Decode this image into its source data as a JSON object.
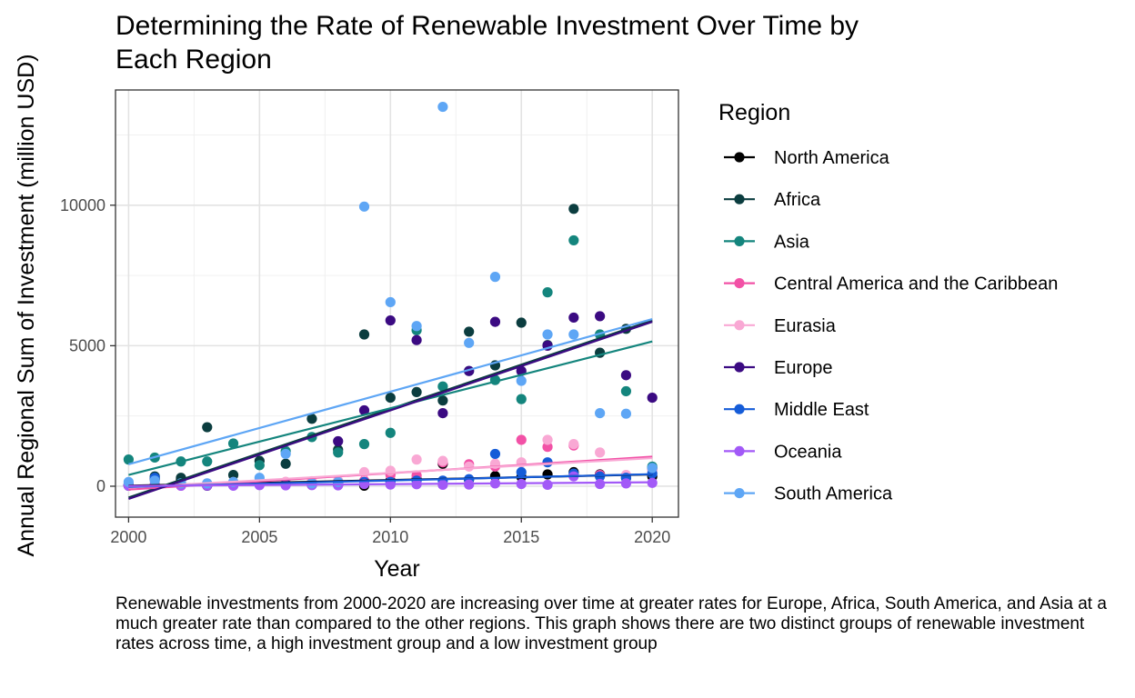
{
  "title": "Determining the Rate of Renewable Investment Over Time by\nEach Region",
  "caption": "Renewable investments from 2000-2020 are increasing over time at greater rates for Europe, Africa, South America, and Asia at a much greater rate than compared to the other regions. This graph shows there are two distinct groups of renewable investment rates across time, a high investment group and a low investment group",
  "chart_data": {
    "type": "scatter",
    "title": "Determining the Rate of Renewable Investment Over Time by Each Region",
    "xlabel": "Year",
    "ylabel": "Annual Regional Sum of Investment (million USD)",
    "xlim": [
      1999.5,
      2021
    ],
    "ylim": [
      -1100,
      14100
    ],
    "x_ticks": [
      2000,
      2005,
      2010,
      2015,
      2020
    ],
    "y_ticks": [
      0,
      5000,
      10000
    ],
    "grid": true,
    "legend_title": "Region",
    "legend_position": "right",
    "trend_lines": "linear fit per region",
    "series": [
      {
        "name": "North America",
        "color": "#000000",
        "points": [
          [
            2000,
            20
          ],
          [
            2001,
            250
          ],
          [
            2002,
            250
          ],
          [
            2003,
            40
          ],
          [
            2004,
            120
          ],
          [
            2005,
            90
          ],
          [
            2006,
            70
          ],
          [
            2007,
            60
          ],
          [
            2008,
            50
          ],
          [
            2009,
            20
          ],
          [
            2010,
            200
          ],
          [
            2011,
            250
          ],
          [
            2012,
            800
          ],
          [
            2013,
            230
          ],
          [
            2014,
            360
          ],
          [
            2015,
            330
          ],
          [
            2016,
            420
          ],
          [
            2017,
            500
          ],
          [
            2018,
            420
          ],
          [
            2019,
            300
          ],
          [
            2020,
            350
          ]
        ],
        "fit": [
          [
            2000,
            20
          ],
          [
            2020,
            420
          ]
        ]
      },
      {
        "name": "Africa",
        "color": "#0B3D3F",
        "points": [
          [
            2000,
            30
          ],
          [
            2001,
            350
          ],
          [
            2002,
            300
          ],
          [
            2003,
            2100
          ],
          [
            2004,
            400
          ],
          [
            2005,
            900
          ],
          [
            2006,
            800
          ],
          [
            2007,
            2400
          ],
          [
            2008,
            1300
          ],
          [
            2009,
            5400
          ],
          [
            2010,
            3150
          ],
          [
            2011,
            3350
          ],
          [
            2012,
            3050
          ],
          [
            2013,
            5500
          ],
          [
            2014,
            4300
          ],
          [
            2015,
            5820
          ],
          [
            2016,
            5020
          ],
          [
            2017,
            9870
          ],
          [
            2018,
            4750
          ],
          [
            2019,
            5600
          ],
          [
            2020,
            650
          ]
        ],
        "fit": [
          [
            2000,
            -400
          ],
          [
            2020,
            5900
          ]
        ]
      },
      {
        "name": "Asia",
        "color": "#14857D",
        "points": [
          [
            2000,
            950
          ],
          [
            2001,
            1020
          ],
          [
            2002,
            880
          ],
          [
            2003,
            880
          ],
          [
            2004,
            1520
          ],
          [
            2005,
            750
          ],
          [
            2006,
            1250
          ],
          [
            2007,
            1750
          ],
          [
            2008,
            1200
          ],
          [
            2009,
            1500
          ],
          [
            2010,
            1900
          ],
          [
            2011,
            5550
          ],
          [
            2012,
            3550
          ],
          [
            2013,
            4100
          ],
          [
            2014,
            3780
          ],
          [
            2015,
            3100
          ],
          [
            2016,
            6900
          ],
          [
            2017,
            8750
          ],
          [
            2018,
            5400
          ],
          [
            2019,
            3380
          ],
          [
            2020,
            700
          ]
        ],
        "fit": [
          [
            2000,
            400
          ],
          [
            2020,
            5150
          ]
        ]
      },
      {
        "name": "Central America and the Caribbean",
        "color": "#F251A6",
        "points": [
          [
            2000,
            30
          ],
          [
            2001,
            40
          ],
          [
            2002,
            20
          ],
          [
            2003,
            30
          ],
          [
            2004,
            40
          ],
          [
            2005,
            60
          ],
          [
            2006,
            70
          ],
          [
            2007,
            100
          ],
          [
            2008,
            120
          ],
          [
            2009,
            200
          ],
          [
            2010,
            400
          ],
          [
            2011,
            380
          ],
          [
            2012,
            850
          ],
          [
            2013,
            780
          ],
          [
            2014,
            700
          ],
          [
            2015,
            1650
          ],
          [
            2016,
            1400
          ],
          [
            2017,
            1450
          ],
          [
            2018,
            400
          ],
          [
            2019,
            350
          ],
          [
            2020,
            600
          ]
        ],
        "fit": [
          [
            2000,
            -120
          ],
          [
            2020,
            1050
          ]
        ]
      },
      {
        "name": "Eurasia",
        "color": "#F9A8D4",
        "points": [
          [
            2000,
            60
          ],
          [
            2001,
            80
          ],
          [
            2002,
            40
          ],
          [
            2003,
            100
          ],
          [
            2004,
            150
          ],
          [
            2005,
            120
          ],
          [
            2006,
            160
          ],
          [
            2007,
            180
          ],
          [
            2008,
            200
          ],
          [
            2009,
            500
          ],
          [
            2010,
            550
          ],
          [
            2011,
            950
          ],
          [
            2012,
            900
          ],
          [
            2013,
            700
          ],
          [
            2014,
            800
          ],
          [
            2015,
            850
          ],
          [
            2016,
            1650
          ],
          [
            2017,
            1500
          ],
          [
            2018,
            1200
          ],
          [
            2019,
            400
          ],
          [
            2020,
            550
          ]
        ],
        "fit": [
          [
            2000,
            -50
          ],
          [
            2020,
            1000
          ]
        ]
      },
      {
        "name": "Europe",
        "color": "#3B0A82",
        "points": [
          [
            2000,
            40
          ],
          [
            2001,
            30
          ],
          [
            2002,
            30
          ],
          [
            2003,
            20
          ],
          [
            2004,
            30
          ],
          [
            2005,
            80
          ],
          [
            2006,
            60
          ],
          [
            2007,
            50
          ],
          [
            2008,
            1600
          ],
          [
            2009,
            2700
          ],
          [
            2010,
            5900
          ],
          [
            2011,
            5200
          ],
          [
            2012,
            2600
          ],
          [
            2013,
            4100
          ],
          [
            2014,
            5850
          ],
          [
            2015,
            4100
          ],
          [
            2016,
            5000
          ],
          [
            2017,
            6000
          ],
          [
            2018,
            6050
          ],
          [
            2019,
            3950
          ],
          [
            2020,
            3150
          ]
        ],
        "fit": [
          [
            2000,
            -450
          ],
          [
            2020,
            5850
          ]
        ]
      },
      {
        "name": "Middle East",
        "color": "#155CD8",
        "points": [
          [
            2000,
            50
          ],
          [
            2001,
            300
          ],
          [
            2002,
            100
          ],
          [
            2003,
            80
          ],
          [
            2004,
            60
          ],
          [
            2005,
            70
          ],
          [
            2006,
            80
          ],
          [
            2007,
            100
          ],
          [
            2008,
            100
          ],
          [
            2009,
            150
          ],
          [
            2010,
            150
          ],
          [
            2011,
            200
          ],
          [
            2012,
            200
          ],
          [
            2013,
            250
          ],
          [
            2014,
            1150
          ],
          [
            2015,
            500
          ],
          [
            2016,
            850
          ],
          [
            2017,
            450
          ],
          [
            2018,
            350
          ],
          [
            2019,
            300
          ],
          [
            2020,
            450
          ]
        ],
        "fit": [
          [
            2000,
            -20
          ],
          [
            2020,
            430
          ]
        ]
      },
      {
        "name": "Oceania",
        "color": "#A259F7",
        "points": [
          [
            2000,
            20
          ],
          [
            2001,
            30
          ],
          [
            2002,
            20
          ],
          [
            2003,
            30
          ],
          [
            2004,
            20
          ],
          [
            2005,
            40
          ],
          [
            2006,
            30
          ],
          [
            2007,
            40
          ],
          [
            2008,
            30
          ],
          [
            2009,
            80
          ],
          [
            2010,
            60
          ],
          [
            2011,
            70
          ],
          [
            2012,
            50
          ],
          [
            2013,
            60
          ],
          [
            2014,
            100
          ],
          [
            2015,
            80
          ],
          [
            2016,
            50
          ],
          [
            2017,
            350
          ],
          [
            2018,
            80
          ],
          [
            2019,
            100
          ],
          [
            2020,
            120
          ]
        ],
        "fit": [
          [
            2000,
            10
          ],
          [
            2020,
            140
          ]
        ]
      },
      {
        "name": "South America",
        "color": "#5EA6F5",
        "points": [
          [
            2000,
            150
          ],
          [
            2001,
            200
          ],
          [
            2002,
            100
          ],
          [
            2003,
            100
          ],
          [
            2004,
            150
          ],
          [
            2005,
            300
          ],
          [
            2006,
            1150
          ],
          [
            2007,
            100
          ],
          [
            2008,
            150
          ],
          [
            2009,
            9950
          ],
          [
            2010,
            6550
          ],
          [
            2011,
            5700
          ],
          [
            2012,
            13500
          ],
          [
            2013,
            5100
          ],
          [
            2014,
            7450
          ],
          [
            2015,
            3750
          ],
          [
            2016,
            5400
          ],
          [
            2017,
            5400
          ],
          [
            2018,
            2600
          ],
          [
            2019,
            2580
          ],
          [
            2020,
            650
          ]
        ],
        "fit": [
          [
            2000,
            780
          ],
          [
            2020,
            5950
          ]
        ]
      }
    ]
  }
}
